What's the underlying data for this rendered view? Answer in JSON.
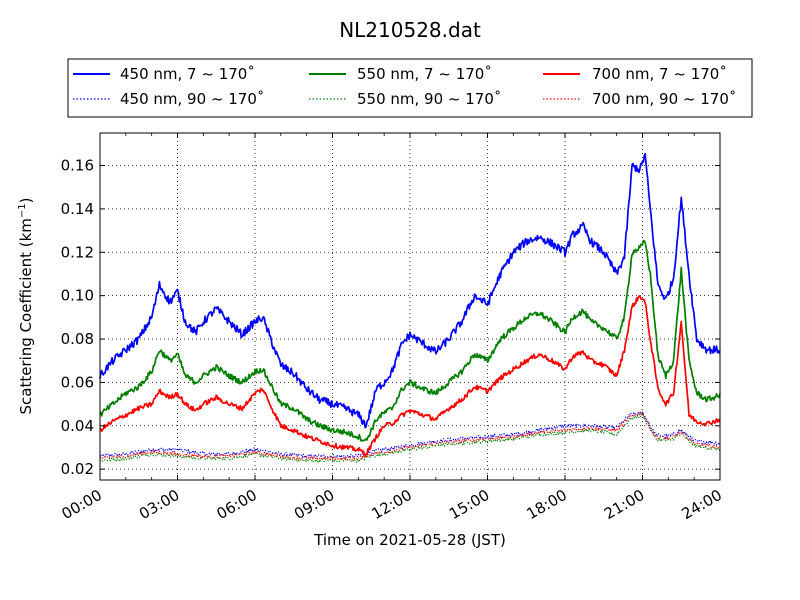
{
  "chart_data": {
    "type": "line",
    "title": "NL210528.dat",
    "xlabel": "Time on 2021-05-28 (JST)",
    "ylabel_main": "Scattering Coefficient (km",
    "ylabel_exp": "−1",
    "ylabel_close": ")",
    "x_unit": "hours",
    "xlim": [
      0,
      24
    ],
    "ylim": [
      0.015,
      0.175
    ],
    "x_ticks": [
      0,
      3,
      6,
      9,
      12,
      15,
      18,
      21,
      24
    ],
    "x_tick_labels": [
      "00:00",
      "03:00",
      "06:00",
      "09:00",
      "12:00",
      "15:00",
      "18:00",
      "21:00",
      "24:00"
    ],
    "y_ticks": [
      0.02,
      0.04,
      0.06,
      0.08,
      0.1,
      0.12,
      0.14,
      0.16
    ],
    "y_tick_labels": [
      "0.02",
      "0.04",
      "0.06",
      "0.08",
      "0.10",
      "0.12",
      "0.14",
      "0.16"
    ],
    "grid": true,
    "legend_position": "top (above plot)",
    "series": [
      {
        "name": "450 nm, 7 ~ 170˚",
        "color": "#0000ff",
        "style": "solid",
        "noise": 0.0018,
        "x": [
          0,
          0.5,
          1,
          1.5,
          2,
          2.3,
          2.7,
          3,
          3.3,
          3.7,
          4,
          4.5,
          5,
          5.5,
          6,
          6.3,
          6.7,
          7,
          7.5,
          8,
          8.5,
          9,
          9.5,
          10,
          10.3,
          10.7,
          11,
          11.3,
          11.7,
          12,
          12.5,
          13,
          13.5,
          14,
          14.5,
          15,
          15.5,
          16,
          16.5,
          17,
          17.5,
          18,
          18.3,
          18.7,
          19,
          19.5,
          20,
          20.3,
          20.6,
          20.9,
          21.1,
          21.3,
          21.6,
          21.9,
          22.2,
          22.5,
          22.8,
          23.1,
          23.5,
          24
        ],
        "y": [
          0.063,
          0.07,
          0.075,
          0.08,
          0.09,
          0.105,
          0.097,
          0.102,
          0.088,
          0.083,
          0.088,
          0.094,
          0.088,
          0.082,
          0.088,
          0.09,
          0.077,
          0.068,
          0.064,
          0.057,
          0.052,
          0.05,
          0.048,
          0.045,
          0.04,
          0.057,
          0.06,
          0.065,
          0.078,
          0.082,
          0.078,
          0.074,
          0.08,
          0.088,
          0.1,
          0.096,
          0.11,
          0.12,
          0.125,
          0.127,
          0.124,
          0.12,
          0.128,
          0.132,
          0.125,
          0.12,
          0.11,
          0.118,
          0.16,
          0.158,
          0.165,
          0.14,
          0.105,
          0.098,
          0.108,
          0.145,
          0.11,
          0.08,
          0.075,
          0.075
        ]
      },
      {
        "name": "550 nm, 7 ~ 170˚",
        "color": "#008000",
        "style": "solid",
        "noise": 0.0013,
        "x": [
          0,
          0.5,
          1,
          1.5,
          2,
          2.3,
          2.7,
          3,
          3.3,
          3.7,
          4,
          4.5,
          5,
          5.5,
          6,
          6.3,
          6.7,
          7,
          7.5,
          8,
          8.5,
          9,
          9.5,
          10,
          10.3,
          10.7,
          11,
          11.3,
          11.7,
          12,
          12.5,
          13,
          13.5,
          14,
          14.5,
          15,
          15.5,
          16,
          16.5,
          17,
          17.5,
          18,
          18.3,
          18.7,
          19,
          19.5,
          20,
          20.3,
          20.6,
          20.9,
          21.1,
          21.3,
          21.6,
          21.9,
          22.2,
          22.5,
          22.8,
          23.1,
          23.5,
          24
        ],
        "y": [
          0.045,
          0.05,
          0.055,
          0.058,
          0.065,
          0.075,
          0.07,
          0.073,
          0.063,
          0.06,
          0.063,
          0.067,
          0.063,
          0.06,
          0.065,
          0.066,
          0.057,
          0.05,
          0.048,
          0.043,
          0.04,
          0.038,
          0.037,
          0.035,
          0.033,
          0.043,
          0.046,
          0.048,
          0.057,
          0.06,
          0.057,
          0.055,
          0.06,
          0.065,
          0.073,
          0.07,
          0.08,
          0.085,
          0.09,
          0.092,
          0.088,
          0.083,
          0.09,
          0.093,
          0.088,
          0.085,
          0.08,
          0.09,
          0.12,
          0.122,
          0.125,
          0.11,
          0.072,
          0.063,
          0.07,
          0.112,
          0.07,
          0.055,
          0.052,
          0.054
        ]
      },
      {
        "name": "700 nm, 7 ~ 170˚",
        "color": "#ff0000",
        "style": "solid",
        "noise": 0.0011,
        "x": [
          0,
          0.5,
          1,
          1.5,
          2,
          2.3,
          2.7,
          3,
          3.3,
          3.7,
          4,
          4.5,
          5,
          5.5,
          6,
          6.3,
          6.7,
          7,
          7.5,
          8,
          8.5,
          9,
          9.5,
          10,
          10.3,
          10.7,
          11,
          11.3,
          11.7,
          12,
          12.5,
          13,
          13.5,
          14,
          14.5,
          15,
          15.5,
          16,
          16.5,
          17,
          17.5,
          18,
          18.3,
          18.7,
          19,
          19.5,
          20,
          20.3,
          20.6,
          20.9,
          21.1,
          21.3,
          21.6,
          21.9,
          22.2,
          22.5,
          22.8,
          23.1,
          23.5,
          24
        ],
        "y": [
          0.038,
          0.042,
          0.045,
          0.048,
          0.05,
          0.056,
          0.053,
          0.055,
          0.05,
          0.047,
          0.05,
          0.053,
          0.05,
          0.048,
          0.055,
          0.057,
          0.047,
          0.04,
          0.038,
          0.035,
          0.033,
          0.031,
          0.03,
          0.029,
          0.027,
          0.035,
          0.04,
          0.041,
          0.045,
          0.047,
          0.045,
          0.043,
          0.048,
          0.052,
          0.058,
          0.056,
          0.062,
          0.066,
          0.07,
          0.073,
          0.07,
          0.066,
          0.072,
          0.074,
          0.07,
          0.068,
          0.063,
          0.075,
          0.095,
          0.1,
          0.097,
          0.08,
          0.057,
          0.05,
          0.055,
          0.088,
          0.045,
          0.042,
          0.041,
          0.043
        ]
      },
      {
        "name": "450 nm, 90 ~ 170˚",
        "color": "#0000ff",
        "style": "dotted",
        "noise": 0.0009,
        "x": [
          0,
          1,
          2,
          3,
          4,
          5,
          6,
          7,
          8,
          9,
          10,
          10.5,
          11,
          12,
          13,
          14,
          15,
          16,
          17,
          18,
          19,
          20,
          20.5,
          21,
          21.5,
          22,
          22.5,
          23,
          24
        ],
        "y": [
          0.026,
          0.027,
          0.029,
          0.029,
          0.027,
          0.027,
          0.029,
          0.027,
          0.026,
          0.026,
          0.026,
          0.028,
          0.029,
          0.031,
          0.033,
          0.034,
          0.035,
          0.036,
          0.038,
          0.04,
          0.04,
          0.039,
          0.045,
          0.046,
          0.036,
          0.035,
          0.038,
          0.033,
          0.032
        ]
      },
      {
        "name": "550 nm, 90 ~ 170˚",
        "color": "#008000",
        "style": "dotted",
        "noise": 0.0008,
        "x": [
          0,
          1,
          2,
          3,
          4,
          5,
          6,
          7,
          8,
          9,
          10,
          10.5,
          11,
          12,
          13,
          14,
          15,
          16,
          17,
          18,
          19,
          20,
          20.5,
          21,
          21.5,
          22,
          22.5,
          23,
          24
        ],
        "y": [
          0.024,
          0.025,
          0.027,
          0.026,
          0.025,
          0.025,
          0.027,
          0.025,
          0.024,
          0.024,
          0.024,
          0.026,
          0.027,
          0.029,
          0.031,
          0.032,
          0.033,
          0.034,
          0.036,
          0.037,
          0.038,
          0.036,
          0.043,
          0.045,
          0.034,
          0.033,
          0.036,
          0.031,
          0.029
        ]
      },
      {
        "name": "700 nm, 90 ~ 170˚",
        "color": "#ff0000",
        "style": "dotted",
        "noise": 0.0008,
        "x": [
          0,
          1,
          2,
          3,
          4,
          5,
          6,
          7,
          8,
          9,
          10,
          10.5,
          11,
          12,
          13,
          14,
          15,
          16,
          17,
          18,
          19,
          20,
          20.5,
          21,
          21.5,
          22,
          22.5,
          23,
          24
        ],
        "y": [
          0.025,
          0.026,
          0.028,
          0.027,
          0.026,
          0.026,
          0.028,
          0.026,
          0.025,
          0.025,
          0.025,
          0.027,
          0.028,
          0.03,
          0.032,
          0.033,
          0.034,
          0.035,
          0.037,
          0.038,
          0.039,
          0.038,
          0.044,
          0.046,
          0.035,
          0.034,
          0.037,
          0.032,
          0.03
        ]
      }
    ]
  }
}
